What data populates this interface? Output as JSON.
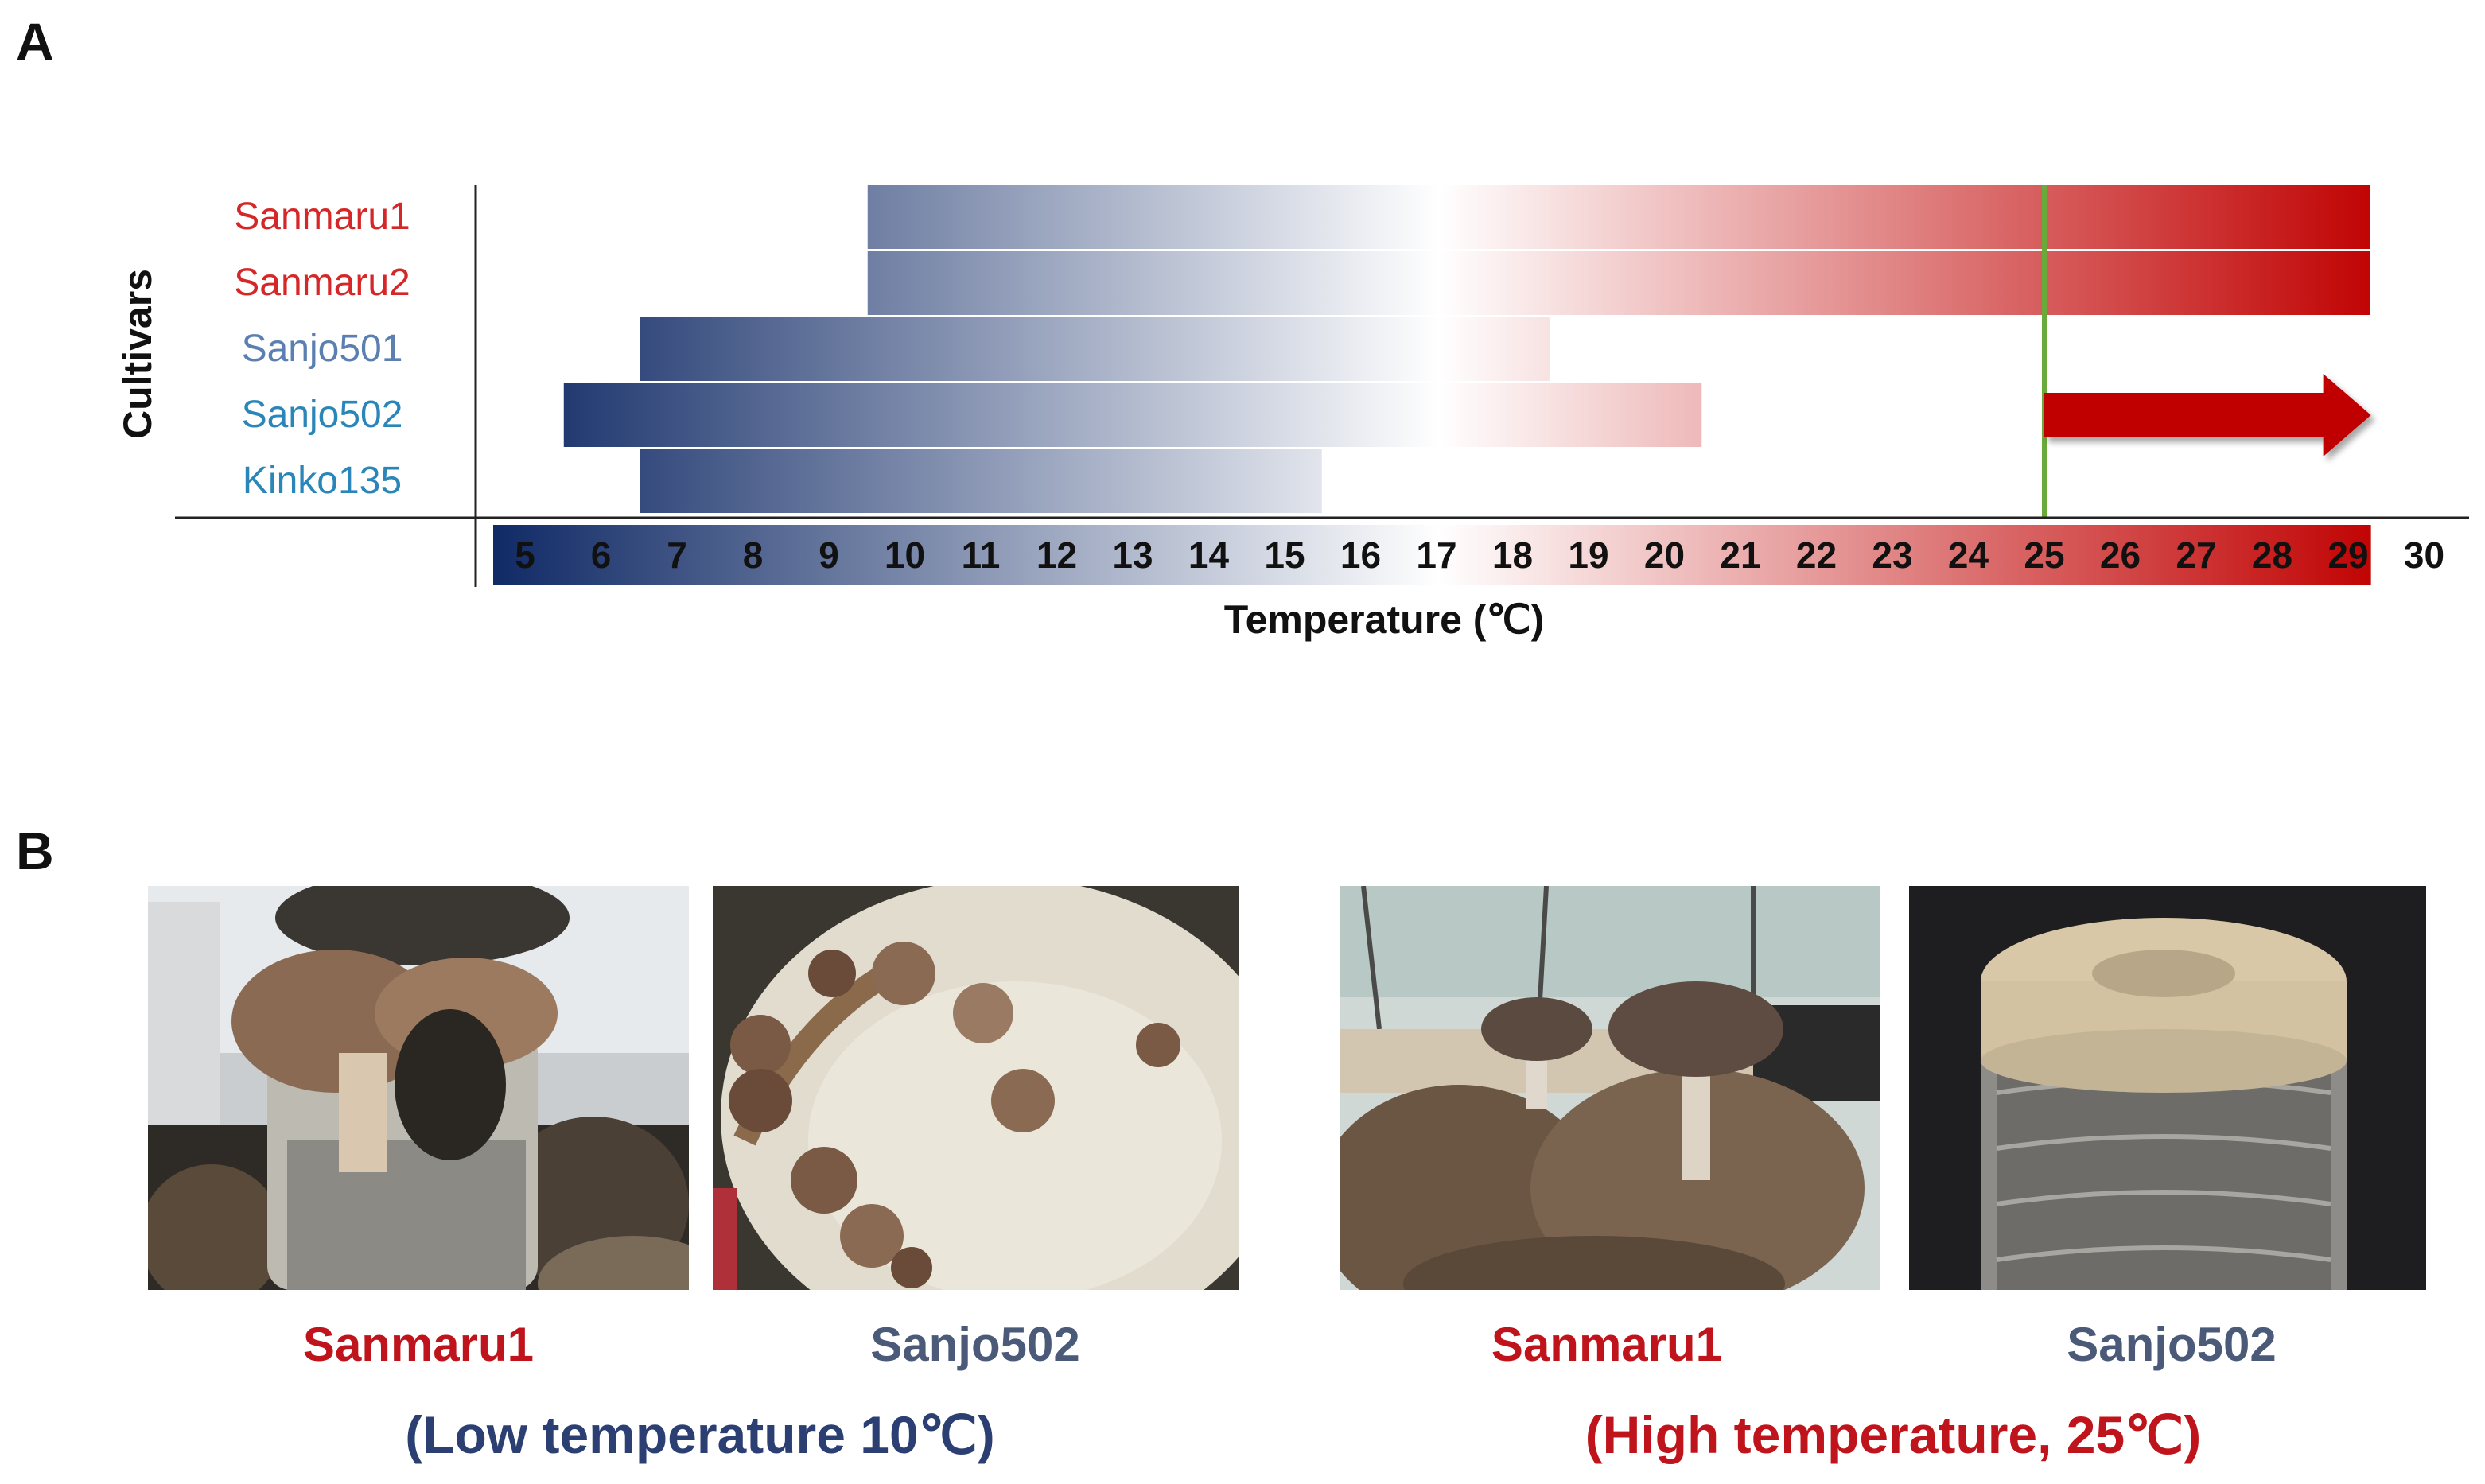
{
  "panels": {
    "a": "A",
    "b": "B"
  },
  "chart_data": {
    "type": "bar",
    "ylabel": "Cultivars",
    "xlabel": "Temperature (℃)",
    "x_ticks": [
      5,
      6,
      7,
      8,
      9,
      10,
      11,
      12,
      13,
      14,
      15,
      16,
      17,
      18,
      19,
      20,
      21,
      22,
      23,
      24,
      25,
      26,
      27,
      28,
      29,
      30
    ],
    "xlim": [
      4.5,
      30
    ],
    "categories": [
      "Sanmaru1",
      "Sanmaru2",
      "Sanjo501",
      "Sanjo502",
      "Kinko135"
    ],
    "label_colors": [
      "#d62728",
      "#d62728",
      "#5a7fb0",
      "#2a86b8",
      "#2a86b8"
    ],
    "ranges": [
      {
        "cultivar": "Sanmaru1",
        "min": 9.5,
        "max": 29.3
      },
      {
        "cultivar": "Sanmaru2",
        "min": 9.5,
        "max": 29.3
      },
      {
        "cultivar": "Sanjo501",
        "min": 6.5,
        "max": 18.5
      },
      {
        "cultivar": "Sanjo502",
        "min": 5.5,
        "max": 20.5
      },
      {
        "cultivar": "Kinko135",
        "min": 6.5,
        "max": 15.5
      }
    ],
    "reference_line": {
      "value": 25,
      "color": "#6aaa3a"
    },
    "arrow": {
      "row": "Sanjo502",
      "from": 25,
      "to": 29.3,
      "color": "#c00000"
    },
    "gradient": {
      "cold": "#102a66",
      "mid": "#ffffff",
      "hot": "#c00000"
    }
  },
  "photos": [
    {
      "caption": "Sanmaru1",
      "caption_color": "#c0141c"
    },
    {
      "caption": "Sanjo502",
      "caption_color": "#4a5a78"
    },
    {
      "caption": "Sanmaru1",
      "caption_color": "#c0141c"
    },
    {
      "caption": "Sanjo502",
      "caption_color": "#4a5a78"
    }
  ],
  "conditions": {
    "low": {
      "text": "(Low temperature 10℃)",
      "color": "#2b3f73"
    },
    "high": {
      "text": "(High temperature, 25℃)",
      "color": "#c0141c"
    }
  }
}
